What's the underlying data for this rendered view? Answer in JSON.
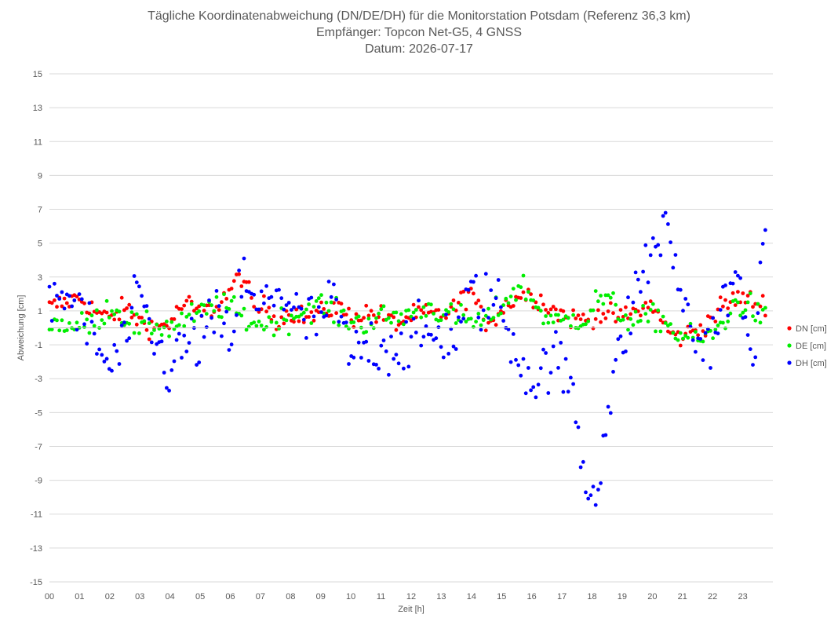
{
  "chart_data": {
    "type": "scatter",
    "title": "Tägliche Koordinatenabweichung (DN/DE/DH) für die Monitorstation Potsdam (Referenz 36,3 km)",
    "subtitle": "Empfänger: Topcon Net-G5, 4 GNSS",
    "date_line": "Datum: 2026-07-17",
    "xlabel": "Zeit [h]",
    "ylabel": "Abweichung [cm]",
    "xlim": [
      0,
      24
    ],
    "ylim": [
      -15,
      15
    ],
    "xticks": [
      "00",
      "01",
      "02",
      "03",
      "04",
      "05",
      "06",
      "07",
      "08",
      "09",
      "10",
      "11",
      "12",
      "13",
      "14",
      "15",
      "16",
      "17",
      "18",
      "19",
      "20",
      "21",
      "22",
      "23"
    ],
    "yticks": [
      15,
      13,
      11,
      9,
      7,
      5,
      3,
      1,
      -1,
      -3,
      -5,
      -7,
      -9,
      -11,
      -13,
      -15
    ],
    "grid": "horizontal",
    "legend_position": "right",
    "series": [
      {
        "name": "DN [cm]",
        "color": "#ff0000",
        "knots": [
          [
            0,
            1.2
          ],
          [
            1,
            1.8
          ],
          [
            1.5,
            1.0
          ],
          [
            2,
            0.5
          ],
          [
            2.5,
            1.2
          ],
          [
            3,
            0.4
          ],
          [
            3.5,
            0.0
          ],
          [
            4,
            0.3
          ],
          [
            4.5,
            1.5
          ],
          [
            5,
            0.8
          ],
          [
            5.5,
            1.2
          ],
          [
            6,
            2.2
          ],
          [
            6.4,
            3.2
          ],
          [
            6.8,
            1.0
          ],
          [
            7.2,
            1.3
          ],
          [
            7.6,
            0.4
          ],
          [
            8,
            1.0
          ],
          [
            8.5,
            0.6
          ],
          [
            9,
            0.8
          ],
          [
            9.5,
            1.3
          ],
          [
            10,
            0.6
          ],
          [
            10.5,
            0.9
          ],
          [
            11,
            0.7
          ],
          [
            11.5,
            0.2
          ],
          [
            12,
            0.7
          ],
          [
            12.5,
            0.8
          ],
          [
            13,
            0.7
          ],
          [
            13.5,
            1.3
          ],
          [
            14,
            2.2
          ],
          [
            14.4,
            0.3
          ],
          [
            14.8,
            0.7
          ],
          [
            15.3,
            1.6
          ],
          [
            15.7,
            2.0
          ],
          [
            16.2,
            1.8
          ],
          [
            16.6,
            1.2
          ],
          [
            17,
            0.8
          ],
          [
            17.4,
            0.5
          ],
          [
            17.8,
            0.6
          ],
          [
            18.2,
            0.9
          ],
          [
            18.6,
            0.7
          ],
          [
            19,
            0.6
          ],
          [
            19.5,
            1.0
          ],
          [
            20,
            1.4
          ],
          [
            20.4,
            0.1
          ],
          [
            20.8,
            -0.6
          ],
          [
            21.3,
            -0.3
          ],
          [
            21.8,
            0.3
          ],
          [
            22.3,
            1.2
          ],
          [
            22.8,
            1.8
          ],
          [
            23.3,
            1.6
          ],
          [
            23.6,
            1.4
          ]
        ],
        "noise": 0.45
      },
      {
        "name": "DE [cm]",
        "color": "#00ee00",
        "knots": [
          [
            0,
            0.3
          ],
          [
            1,
            0.1
          ],
          [
            1.5,
            0.3
          ],
          [
            2,
            1.3
          ],
          [
            2.5,
            0.7
          ],
          [
            3,
            -0.1
          ],
          [
            3.5,
            0.2
          ],
          [
            4,
            0.0
          ],
          [
            4.5,
            0.5
          ],
          [
            5,
            0.8
          ],
          [
            5.5,
            1.3
          ],
          [
            6,
            1.2
          ],
          [
            6.4,
            0.6
          ],
          [
            6.8,
            0.3
          ],
          [
            7.2,
            0.2
          ],
          [
            7.6,
            0.4
          ],
          [
            8,
            0.6
          ],
          [
            8.5,
            1.1
          ],
          [
            9,
            1.4
          ],
          [
            9.5,
            0.8
          ],
          [
            10,
            0.4
          ],
          [
            10.5,
            0.3
          ],
          [
            11,
            0.6
          ],
          [
            11.5,
            0.6
          ],
          [
            12,
            0.9
          ],
          [
            12.5,
            1.3
          ],
          [
            13,
            0.9
          ],
          [
            13.5,
            0.6
          ],
          [
            14,
            0.4
          ],
          [
            14.4,
            0.3
          ],
          [
            14.8,
            0.9
          ],
          [
            15.3,
            2.0
          ],
          [
            15.7,
            2.5
          ],
          [
            16.2,
            1.2
          ],
          [
            16.6,
            0.4
          ],
          [
            17,
            0.3
          ],
          [
            17.4,
            0.6
          ],
          [
            17.8,
            0.5
          ],
          [
            18.2,
            1.8
          ],
          [
            18.6,
            1.5
          ],
          [
            19,
            0.7
          ],
          [
            19.5,
            0.4
          ],
          [
            20,
            0.6
          ],
          [
            20.4,
            0.5
          ],
          [
            20.8,
            -0.4
          ],
          [
            21.3,
            -0.6
          ],
          [
            21.8,
            -0.7
          ],
          [
            22.3,
            0.2
          ],
          [
            22.8,
            1.5
          ],
          [
            23.3,
            1.2
          ],
          [
            23.6,
            0.5
          ]
        ],
        "noise": 0.55
      },
      {
        "name": "DH [cm]",
        "color": "#0000ff",
        "knots": [
          [
            0,
            1.5
          ],
          [
            0.5,
            2.0
          ],
          [
            1,
            0.8
          ],
          [
            1.5,
            -0.8
          ],
          [
            2,
            -2.5
          ],
          [
            2.5,
            -0.8
          ],
          [
            3,
            1.8
          ],
          [
            3.5,
            -1.0
          ],
          [
            4,
            -2.5
          ],
          [
            4.5,
            -1.0
          ],
          [
            5,
            -0.8
          ],
          [
            5.5,
            0.5
          ],
          [
            6,
            -0.7
          ],
          [
            6.4,
            3.0
          ],
          [
            6.8,
            1.0
          ],
          [
            7.2,
            1.5
          ],
          [
            7.6,
            2.5
          ],
          [
            8,
            1.2
          ],
          [
            8.5,
            0.2
          ],
          [
            9,
            0.6
          ],
          [
            9.5,
            1.5
          ],
          [
            10,
            -2.0
          ],
          [
            10.5,
            -1.0
          ],
          [
            11,
            -1.0
          ],
          [
            11.5,
            -1.0
          ],
          [
            12,
            -0.8
          ],
          [
            12.5,
            -0.5
          ],
          [
            13,
            -0.3
          ],
          [
            13.5,
            -0.5
          ],
          [
            14,
            2.0
          ],
          [
            14.4,
            1.5
          ],
          [
            14.8,
            1.8
          ],
          [
            15.3,
            -0.5
          ],
          [
            15.7,
            -2.0
          ],
          [
            16.2,
            -3.5
          ],
          [
            16.6,
            -1.5
          ],
          [
            17,
            -2.5
          ],
          [
            17.4,
            -4.0
          ],
          [
            17.8,
            -9.5
          ],
          [
            18.2,
            -9.0
          ],
          [
            18.6,
            -4.0
          ],
          [
            19,
            -1.0
          ],
          [
            19.5,
            2.5
          ],
          [
            20,
            4.5
          ],
          [
            20.4,
            6.0
          ],
          [
            20.8,
            3.5
          ],
          [
            21.3,
            -0.5
          ],
          [
            21.8,
            -1.0
          ],
          [
            22.3,
            1.0
          ],
          [
            22.8,
            3.0
          ],
          [
            23.3,
            -2.0
          ],
          [
            23.6,
            4.0
          ]
        ],
        "noise": 1.3
      }
    ]
  }
}
